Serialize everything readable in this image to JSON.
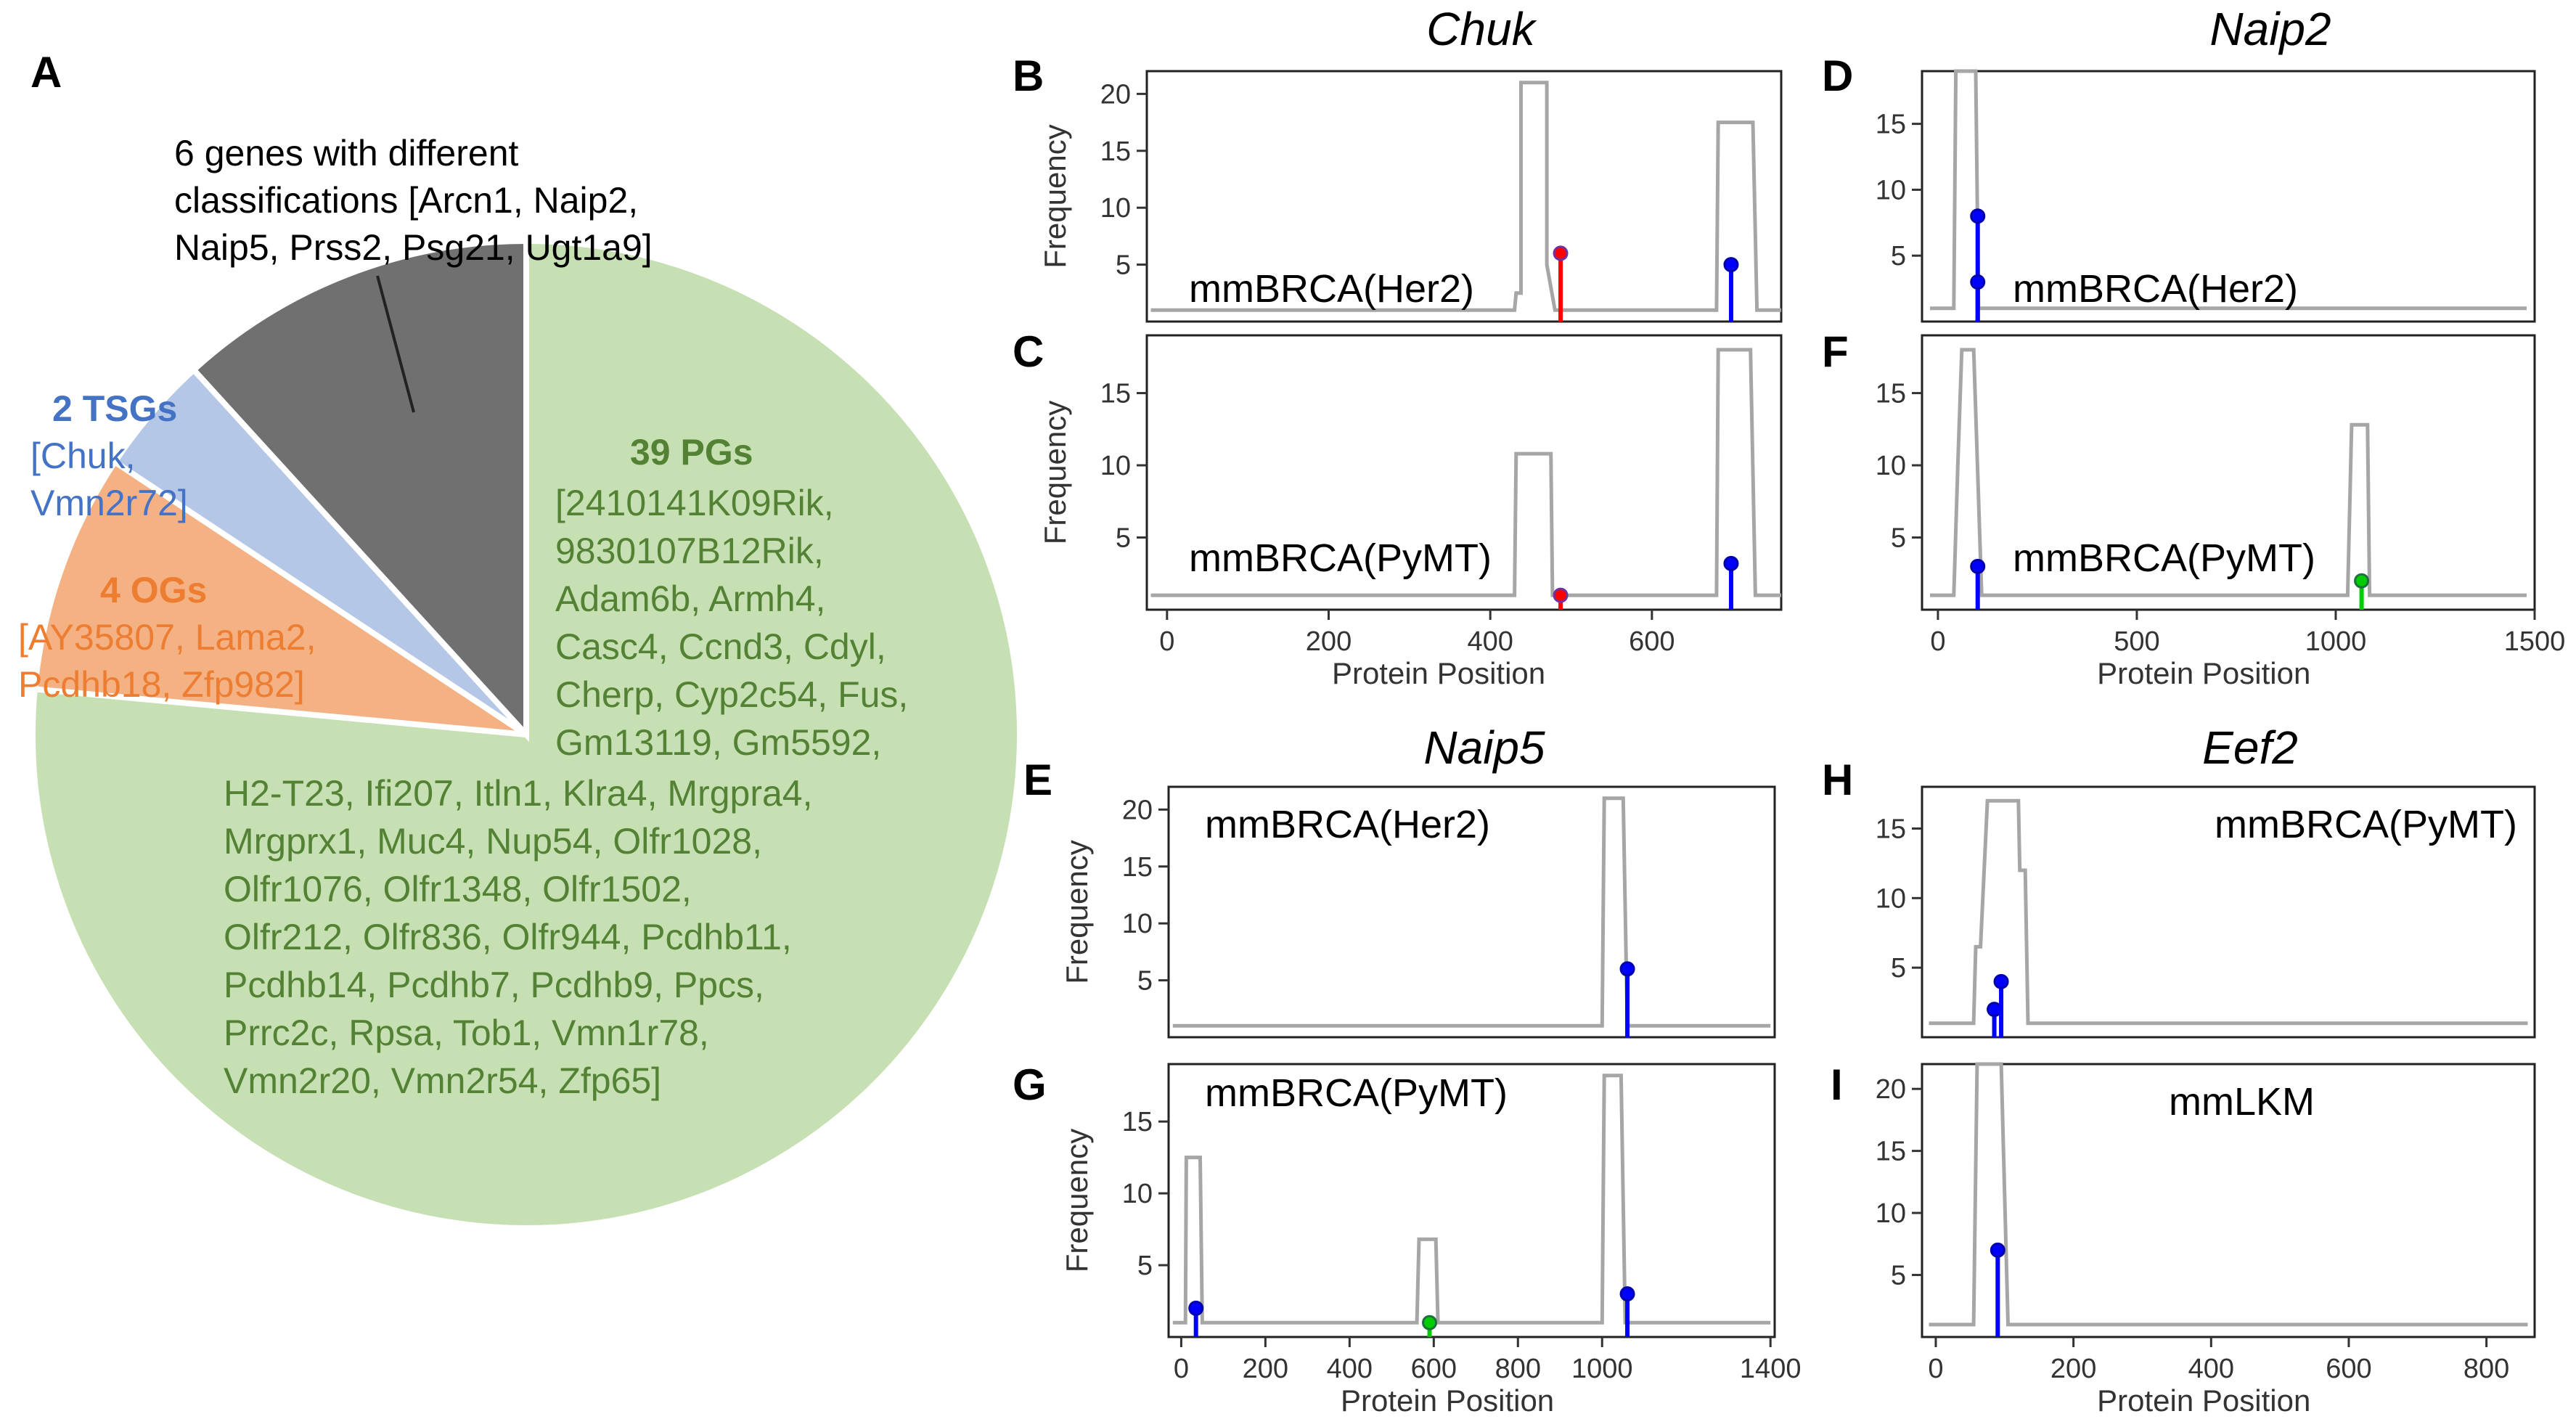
{
  "panel_letters": {
    "A": "A",
    "B": "B",
    "C": "C",
    "D": "D",
    "E": "E",
    "F": "F",
    "G": "G",
    "H": "H",
    "I": "I"
  },
  "colors": {
    "pg": "#c6e0b4",
    "pg_text": "#548235",
    "og": "#f4b183",
    "og_text": "#ed7d31",
    "tsg": "#b4c7e7",
    "tsg_text": "#4472c4",
    "diff": "#707070",
    "line": "#a6a6a6",
    "stem_blue": "#0000ff",
    "stem_red": "#ff0000",
    "stem_green": "#00cc00"
  },
  "pie": {
    "annotation": [
      "6 genes with different",
      "classifications [Arcn1, Naip2,",
      "Naip5, Prss2, Psg21, Ugt1a9]"
    ],
    "tsg": {
      "title": "2 TSGs",
      "lines": [
        "[Chuk,",
        "Vmn2r72]"
      ]
    },
    "og": {
      "title": "4 OGs",
      "lines": [
        "[AY35807, Lama2,",
        "Pcdhb18, Zfp982]"
      ]
    },
    "pg": {
      "title": "39 PGs",
      "lines": [
        "[2410141K09Rik,",
        "9830107B12Rik,",
        "Adam6b, Armh4,",
        "Casc4, Ccnd3, Cdyl,",
        "Cherp, Cyp2c54, Fus,",
        "Gm13119, Gm5592,",
        "H2-T23, Ifi207, Itln1, Klra4, Mrgpra4,",
        "Mrgprx1, Muc4, Nup54, Olfr1028,",
        "Olfr1076, Olfr1348, Olfr1502,",
        "Olfr212, Olfr836, Olfr944, Pcdhb11,",
        "Pcdhb14, Pcdhb7, Pcdhb9, Ppcs,",
        "Prrc2c, Rpsa, Tob1, Vmn1r78,",
        "Vmn2r20, Vmn2r54, Zfp65]"
      ]
    }
  },
  "chart_data": [
    {
      "type": "pie",
      "title": "",
      "slices": [
        {
          "label": "39 PGs",
          "value": 39
        },
        {
          "label": "4 OGs",
          "value": 4
        },
        {
          "label": "2 TSGs",
          "value": 2
        },
        {
          "label": "6 genes with different classifications",
          "value": 6
        }
      ]
    },
    {
      "type": "line",
      "panel": "B",
      "gene": "Chuk",
      "label": "mmBRCA(Her2)",
      "ylabel": "Frequency",
      "xlabel": "",
      "xlim": [
        -25,
        760
      ],
      "ylim": [
        0,
        22
      ],
      "yticks": [
        5,
        10,
        15,
        20
      ],
      "xticks": [],
      "profile": [
        [
          0,
          1
        ],
        [
          480,
          1
        ],
        [
          482,
          3
        ],
        [
          485,
          1
        ],
        [
          488,
          21
        ],
        [
          485,
          21
        ],
        [
          440,
          21
        ],
        [
          440,
          2
        ],
        [
          445,
          1
        ],
        [
          490,
          1
        ]
      ],
      "line_x": [
        490,
        497,
        510,
        680,
        682,
        690,
        725,
        735,
        770
      ],
      "line_y": [
        1,
        1,
        1,
        1,
        17.8,
        17.8,
        17.8,
        1,
        1
      ],
      "stems": [
        {
          "x": 487,
          "y": 6,
          "color": "red"
        },
        {
          "x": 698,
          "y": 5,
          "color": "blue"
        }
      ]
    },
    {
      "type": "line",
      "panel": "C",
      "gene": "Chuk",
      "label": "mmBRCA(PyMT)",
      "ylabel": "Frequency",
      "xlabel": "Protein Position",
      "xlim": [
        -25,
        760
      ],
      "ylim": [
        0,
        19
      ],
      "yticks": [
        5,
        10,
        15
      ],
      "xticks": [
        0,
        200,
        400,
        600
      ],
      "stems": [
        {
          "x": 487,
          "y": 1,
          "color": "red"
        },
        {
          "x": 698,
          "y": 3.2,
          "color": "blue"
        }
      ]
    },
    {
      "type": "line",
      "panel": "D",
      "gene": "Naip2",
      "label": "mmBRCA(Her2)",
      "ylabel": "",
      "xlabel": "",
      "xlim": [
        -40,
        1500
      ],
      "ylim": [
        0,
        19
      ],
      "yticks": [
        5,
        10,
        15
      ],
      "xticks": [],
      "stems": [
        {
          "x": 100,
          "y": 8,
          "color": "blue"
        },
        {
          "x": 100,
          "y": 3,
          "color": "blue"
        }
      ]
    },
    {
      "type": "line",
      "panel": "F",
      "gene": "Naip2",
      "label": "mmBRCA(PyMT)",
      "ylabel": "",
      "xlabel": "Protein Position",
      "xlim": [
        -40,
        1500
      ],
      "ylim": [
        0,
        19
      ],
      "yticks": [
        5,
        10,
        15
      ],
      "xticks": [
        0,
        500,
        1000,
        1500
      ],
      "stems": [
        {
          "x": 100,
          "y": 3,
          "color": "blue"
        },
        {
          "x": 1065,
          "y": 2,
          "color": "green"
        }
      ]
    },
    {
      "type": "line",
      "panel": "E",
      "gene": "Naip5",
      "label": "mmBRCA(Her2)",
      "ylabel": "Frequency",
      "xlabel": "",
      "xlim": [
        -30,
        1410
      ],
      "ylim": [
        0,
        22
      ],
      "yticks": [
        5,
        10,
        15,
        20
      ],
      "xticks": [],
      "stems": [
        {
          "x": 1060,
          "y": 6,
          "color": "blue"
        }
      ]
    },
    {
      "type": "line",
      "panel": "G",
      "gene": "Naip5",
      "label": "mmBRCA(PyMT)",
      "ylabel": "Frequency",
      "xlabel": "Protein Position",
      "xlim": [
        -30,
        1410
      ],
      "ylim": [
        0,
        19
      ],
      "yticks": [
        5,
        10,
        15
      ],
      "xticks": [
        0,
        200,
        400,
        600,
        800,
        1000,
        1400
      ],
      "stems": [
        {
          "x": 35,
          "y": 2,
          "color": "blue"
        },
        {
          "x": 590,
          "y": 1,
          "color": "green"
        },
        {
          "x": 1060,
          "y": 3,
          "color": "blue"
        }
      ]
    },
    {
      "type": "line",
      "panel": "H",
      "gene": "Eef2",
      "label": "mmBRCA(PyMT)",
      "ylabel": "",
      "xlabel": "",
      "xlim": [
        -20,
        870
      ],
      "ylim": [
        0,
        18
      ],
      "yticks": [
        5,
        10,
        15
      ],
      "xticks": [],
      "stems": [
        {
          "x": 85,
          "y": 2,
          "color": "blue"
        },
        {
          "x": 95,
          "y": 4,
          "color": "blue"
        }
      ]
    },
    {
      "type": "line",
      "panel": "I",
      "gene": "",
      "label": "mmLKM",
      "ylabel": "",
      "xlabel": "Protein Position",
      "xlim": [
        -20,
        870
      ],
      "ylim": [
        0,
        22
      ],
      "yticks": [
        5,
        10,
        15,
        20
      ],
      "xticks": [
        0,
        200,
        400,
        600,
        800
      ],
      "stems": [
        {
          "x": 90,
          "y": 7,
          "color": "blue"
        }
      ]
    }
  ]
}
